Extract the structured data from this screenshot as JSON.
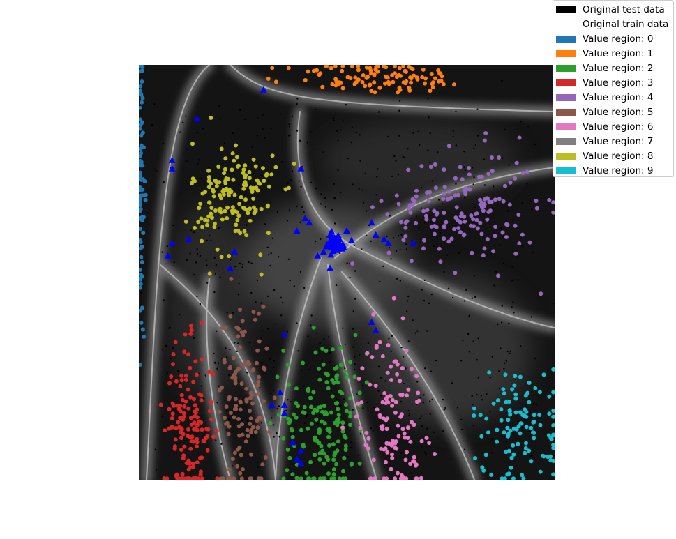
{
  "chart_data": {
    "type": "scatter",
    "title": "",
    "xlabel": "",
    "ylabel": "",
    "xlim": [
      0,
      1
    ],
    "ylim": [
      0,
      1
    ],
    "axes_visible": false,
    "grid": false,
    "background": "grayscale decision-value heatmap with bright boundary ridges",
    "legend_position": "top-right",
    "legend": [
      {
        "label": "Original test data",
        "color": "#000000",
        "marker": "patch"
      },
      {
        "label": "Original train data",
        "color": "#ffffff",
        "marker": "patch"
      },
      {
        "label": "Value region: 0",
        "color": "#1f77b4",
        "marker": "patch"
      },
      {
        "label": "Value region: 1",
        "color": "#ff7f0e",
        "marker": "patch"
      },
      {
        "label": "Value region: 2",
        "color": "#2ca02c",
        "marker": "patch"
      },
      {
        "label": "Value region: 3",
        "color": "#d62728",
        "marker": "patch"
      },
      {
        "label": "Value region: 4",
        "color": "#9467bd",
        "marker": "patch"
      },
      {
        "label": "Value region: 5",
        "color": "#8c564b",
        "marker": "patch"
      },
      {
        "label": "Value region: 6",
        "color": "#e377c2",
        "marker": "patch"
      },
      {
        "label": "Value region: 7",
        "color": "#7f7f7f",
        "marker": "patch"
      },
      {
        "label": "Value region: 8",
        "color": "#bcbd22",
        "marker": "patch"
      },
      {
        "label": "Value region: 9",
        "color": "#17becf",
        "marker": "patch"
      }
    ],
    "clusters": [
      {
        "region": 0,
        "color": "#1f77b4",
        "center": [
          0.005,
          0.72
        ],
        "spread": [
          0.005,
          0.2
        ],
        "count": 90
      },
      {
        "region": 1,
        "color": "#ff7f0e",
        "center": [
          0.58,
          0.97
        ],
        "spread": [
          0.11,
          0.02
        ],
        "count": 110
      },
      {
        "region": 2,
        "color": "#2ca02c",
        "center": [
          0.45,
          0.15
        ],
        "spread": [
          0.05,
          0.1
        ],
        "count": 170
      },
      {
        "region": 3,
        "color": "#d62728",
        "center": [
          0.12,
          0.12
        ],
        "spread": [
          0.03,
          0.1
        ],
        "count": 150
      },
      {
        "region": 4,
        "color": "#9467bd",
        "center": [
          0.78,
          0.65
        ],
        "spread": [
          0.09,
          0.07
        ],
        "count": 160
      },
      {
        "region": 5,
        "color": "#8c564b",
        "center": [
          0.25,
          0.2
        ],
        "spread": [
          0.03,
          0.12
        ],
        "count": 120
      },
      {
        "region": 6,
        "color": "#e377c2",
        "center": [
          0.61,
          0.15
        ],
        "spread": [
          0.04,
          0.1
        ],
        "count": 120
      },
      {
        "region": 7,
        "color": "#7f7f7f",
        "center": [
          0.5,
          0.5
        ],
        "spread": [
          0.01,
          0.01
        ],
        "count": 0
      },
      {
        "region": 8,
        "color": "#bcbd22",
        "center": [
          0.23,
          0.68
        ],
        "spread": [
          0.05,
          0.07
        ],
        "count": 150
      },
      {
        "region": 9,
        "color": "#17becf",
        "center": [
          0.92,
          0.13
        ],
        "spread": [
          0.06,
          0.07
        ],
        "count": 110
      }
    ],
    "test_data": {
      "color": "#000000",
      "count": 600,
      "marker": "small-dot"
    },
    "highlight_points": {
      "color": "#0000ff",
      "marker": "triangle",
      "points": [
        [
          0.3,
          0.94
        ],
        [
          0.14,
          0.87
        ],
        [
          0.08,
          0.77
        ],
        [
          0.08,
          0.75
        ],
        [
          0.39,
          0.75
        ],
        [
          0.4,
          0.63
        ],
        [
          0.41,
          0.62
        ],
        [
          0.38,
          0.6
        ],
        [
          0.12,
          0.58
        ],
        [
          0.08,
          0.57
        ],
        [
          0.07,
          0.54
        ],
        [
          0.23,
          0.55
        ],
        [
          0.22,
          0.51
        ],
        [
          0.46,
          0.59
        ],
        [
          0.48,
          0.58
        ],
        [
          0.5,
          0.6
        ],
        [
          0.56,
          0.62
        ],
        [
          0.57,
          0.59
        ],
        [
          0.59,
          0.58
        ],
        [
          0.6,
          0.57
        ],
        [
          0.66,
          0.57
        ],
        [
          0.43,
          0.54
        ],
        [
          0.46,
          0.51
        ],
        [
          0.56,
          0.38
        ],
        [
          0.57,
          0.36
        ],
        [
          0.35,
          0.35
        ],
        [
          0.34,
          0.21
        ],
        [
          0.32,
          0.18
        ],
        [
          0.35,
          0.18
        ],
        [
          0.35,
          0.16
        ],
        [
          0.37,
          0.09
        ],
        [
          0.39,
          0.07
        ],
        [
          0.38,
          0.05
        ],
        [
          0.39,
          0.04
        ]
      ],
      "dense_cluster": {
        "center": [
          0.47,
          0.57
        ],
        "spread": [
          0.015,
          0.012
        ],
        "count": 45
      }
    }
  }
}
